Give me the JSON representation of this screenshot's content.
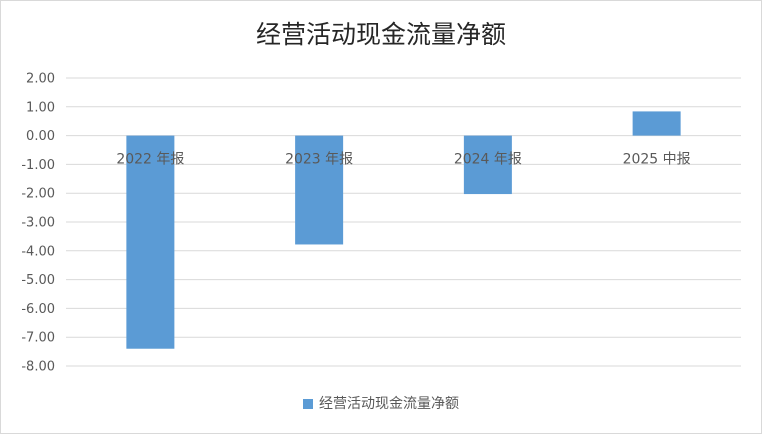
{
  "chart_data": {
    "type": "bar",
    "title": "经营活动现金流量净额",
    "categories": [
      "2022 年报",
      "2023 年报",
      "2024 年报",
      "2025 中报"
    ],
    "series": [
      {
        "name": "经营活动现金流量净额",
        "values": [
          -7.4,
          -3.78,
          -2.03,
          0.84
        ]
      }
    ],
    "ylim": [
      -8,
      2
    ],
    "ytick_labels": [
      "2.00",
      "1.00",
      "0.00",
      "-1.00",
      "-2.00",
      "-3.00",
      "-4.00",
      "-5.00",
      "-6.00",
      "-7.00",
      "-8.00"
    ],
    "grid": true,
    "legend_position": "bottom",
    "bar_color": "#5b9bd5",
    "grid_color": "#d9d9d9"
  }
}
